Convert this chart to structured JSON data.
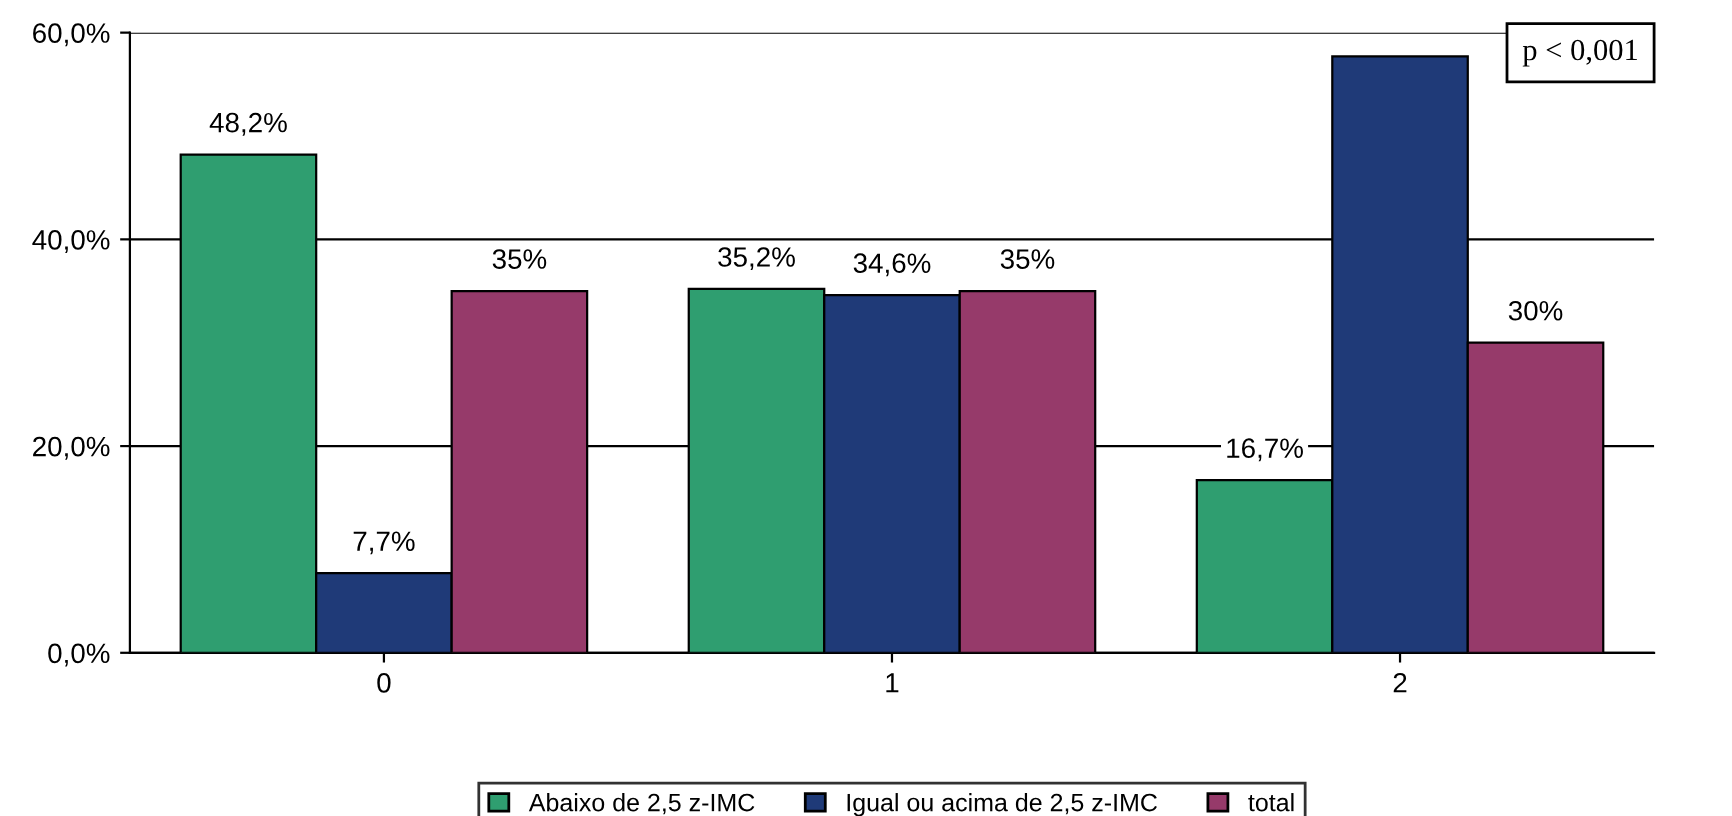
{
  "chart_data": {
    "type": "bar",
    "categories": [
      "0",
      "1",
      "2"
    ],
    "series": [
      {
        "name": "Abaixo de 2,5 z-IMC",
        "color": "#2f9e70",
        "values": [
          48.2,
          35.2,
          16.7
        ],
        "value_labels": [
          "48,2%",
          "35,2%",
          "16,7%"
        ]
      },
      {
        "name": "Igual ou acima de 2,5 z-IMC",
        "color": "#1f3a78",
        "values": [
          7.7,
          34.6,
          57.7
        ],
        "value_labels": [
          "7,7%",
          "34,6%",
          null
        ]
      },
      {
        "name": "total",
        "color": "#963a6a",
        "values": [
          35,
          35,
          30
        ],
        "value_labels": [
          "35%",
          "35%",
          "30%"
        ]
      }
    ],
    "ylim": [
      0,
      60
    ],
    "yticks": [
      {
        "value": 0,
        "label": "0,0%"
      },
      {
        "value": 20,
        "label": "20,0%"
      },
      {
        "value": 40,
        "label": "40,0%"
      },
      {
        "value": 60,
        "label": "60,0%"
      }
    ],
    "grid": "y",
    "legend": "bottom",
    "annotations": [
      "p < 0,001"
    ]
  }
}
